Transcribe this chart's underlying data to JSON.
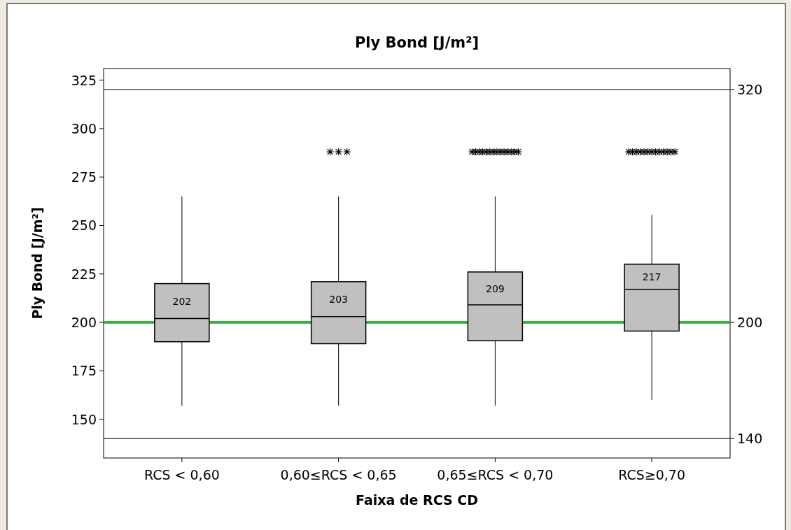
{
  "chart_data": {
    "type": "box",
    "title": "Ply Bond [J/m²]",
    "xlabel": "Faixa de RCS CD",
    "ylabel": "Ply Bond [J/m²]",
    "categories": [
      "RCS < 0,60",
      "0,60≤RCS < 0,65",
      "0,65≤RCS < 0,70",
      "RCS≥0,70"
    ],
    "boxes": [
      {
        "low": 157,
        "q1": 190,
        "median": 202,
        "q3": 220,
        "high": 265
      },
      {
        "low": 157,
        "q1": 189,
        "median": 203,
        "q3": 221,
        "high": 265,
        "outliers": [
          288,
          288,
          288
        ]
      },
      {
        "low": 157,
        "q1": 190.5,
        "median": 209,
        "q3": 226,
        "high": 265,
        "outliers": [
          288,
          288,
          288,
          288,
          288,
          288,
          288,
          288,
          288,
          288,
          288,
          288,
          288,
          288
        ]
      },
      {
        "low": 160,
        "q1": 195.5,
        "median": 217,
        "q3": 230,
        "high": 255.5,
        "outliers": [
          288,
          288,
          288,
          288,
          288,
          288,
          288,
          288,
          288,
          288,
          288,
          288,
          288
        ]
      }
    ],
    "value_labels": [
      "202",
      "203",
      "209",
      "217"
    ],
    "color": "#c0c0c0",
    "ylim": [
      130,
      331
    ],
    "yticks": [
      150,
      175,
      200,
      225,
      250,
      275,
      300,
      325
    ],
    "ref_lines": [
      {
        "axis": "y",
        "value": 320,
        "label": "320",
        "color": "#000000"
      },
      {
        "axis": "y",
        "value": 200,
        "label": "200",
        "color": "#3cb043"
      },
      {
        "axis": "y",
        "value": 140,
        "label": "140",
        "color": "#000000"
      }
    ],
    "grid": false
  }
}
